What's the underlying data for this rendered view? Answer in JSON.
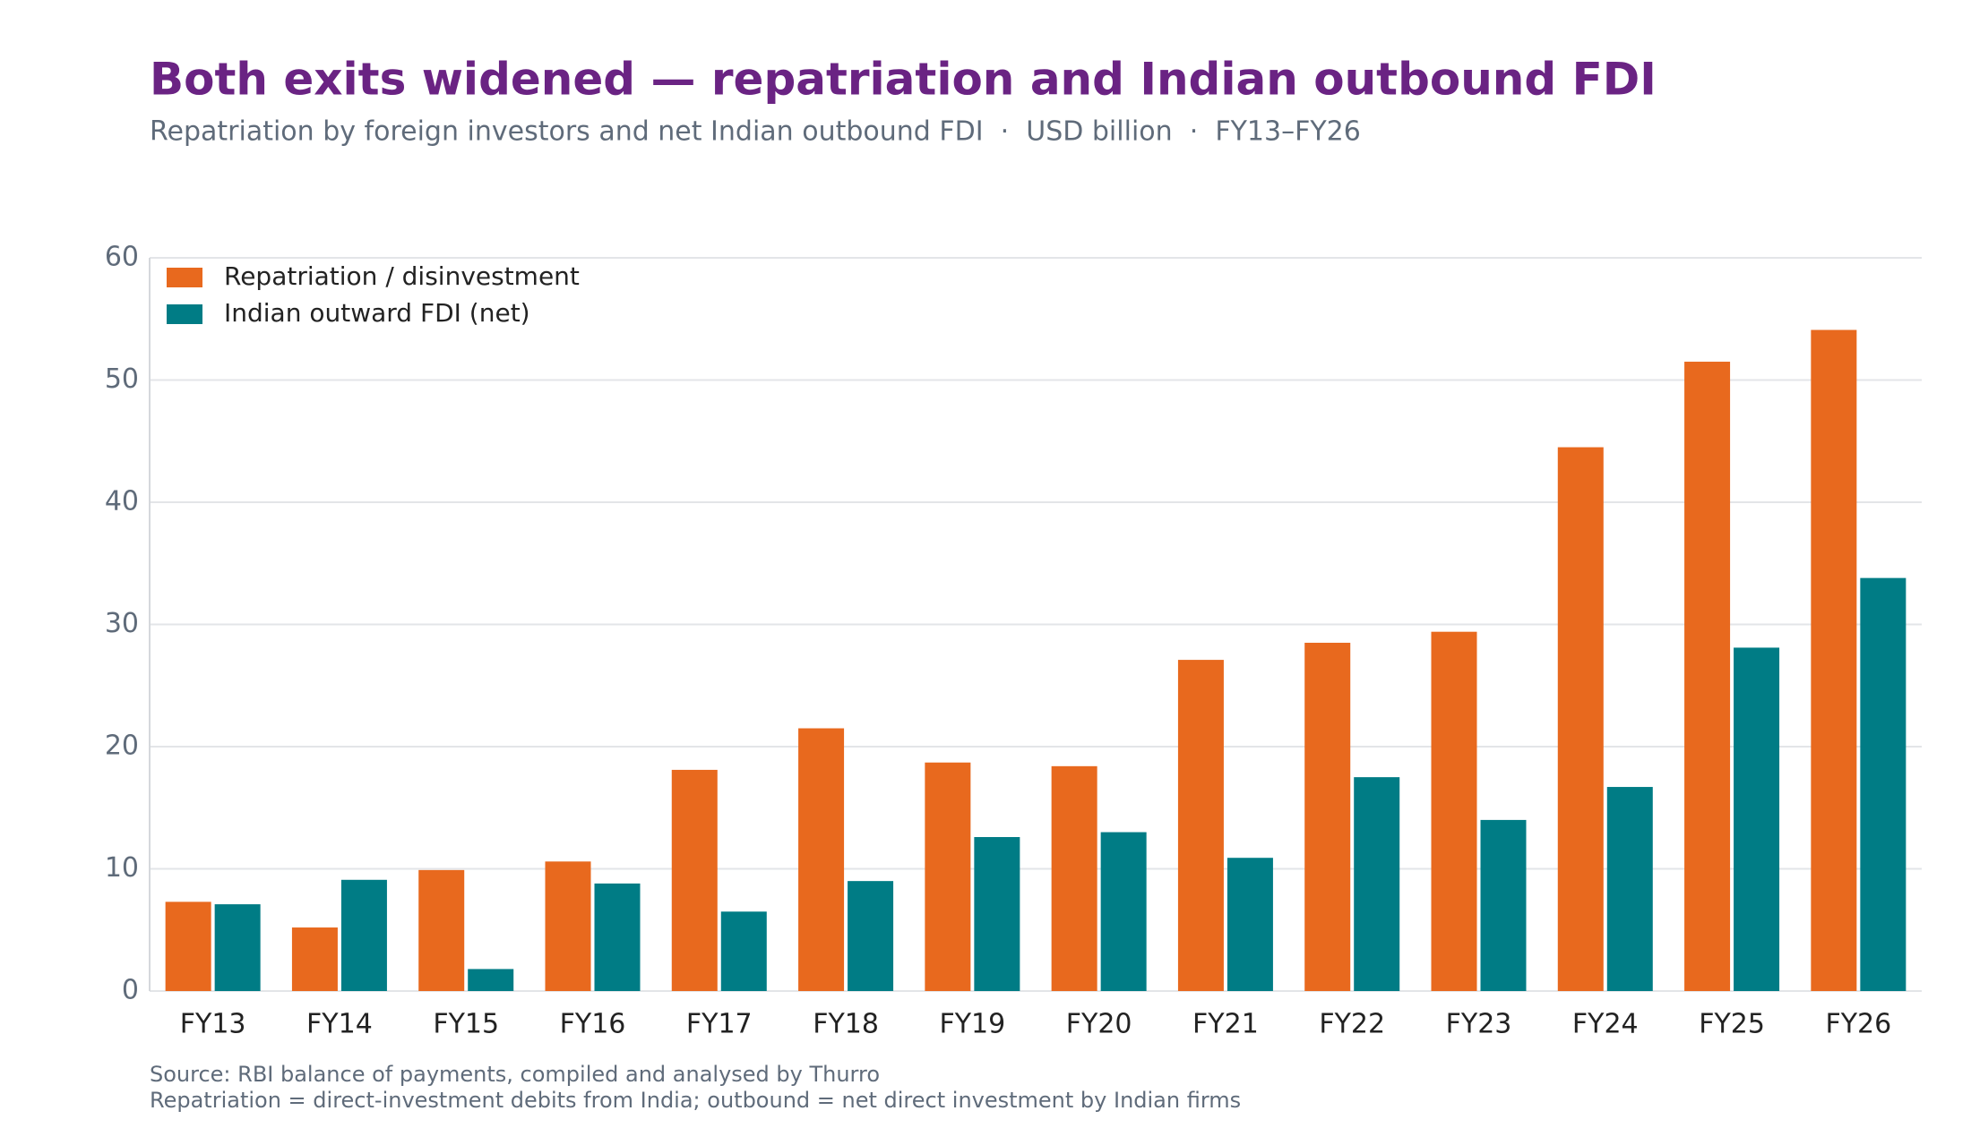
{
  "chart_data": {
    "type": "bar",
    "title": "Both exits widened — repatriation and Indian outbound FDI",
    "subtitle": "Repatriation by foreign investors and net Indian outbound FDI  ·  USD billion  ·  FY13–FY26",
    "categories": [
      "FY13",
      "FY14",
      "FY15",
      "FY16",
      "FY17",
      "FY18",
      "FY19",
      "FY20",
      "FY21",
      "FY22",
      "FY23",
      "FY24",
      "FY25",
      "FY26"
    ],
    "series": [
      {
        "name": "Repatriation / disinvestment",
        "color": "#E8691E",
        "values": [
          7.3,
          5.2,
          9.9,
          10.6,
          18.1,
          21.5,
          18.7,
          18.4,
          27.1,
          28.5,
          29.4,
          44.5,
          51.5,
          54.1
        ]
      },
      {
        "name": "Indian outward FDI (net)",
        "color": "#007C85",
        "values": [
          7.1,
          9.1,
          1.8,
          8.8,
          6.5,
          9.0,
          12.6,
          13.0,
          10.9,
          17.5,
          14.0,
          16.7,
          28.1,
          33.8
        ]
      }
    ],
    "ylim": [
      0,
      60
    ],
    "yticks": [
      0,
      10,
      20,
      30,
      40,
      50,
      60
    ],
    "grid": true,
    "legend": "upper left",
    "notes": [
      "Source: RBI balance of payments, compiled and analysed by Thurro",
      "Repatriation = direct-investment debits from India; outbound = net direct investment by Indian firms"
    ]
  }
}
